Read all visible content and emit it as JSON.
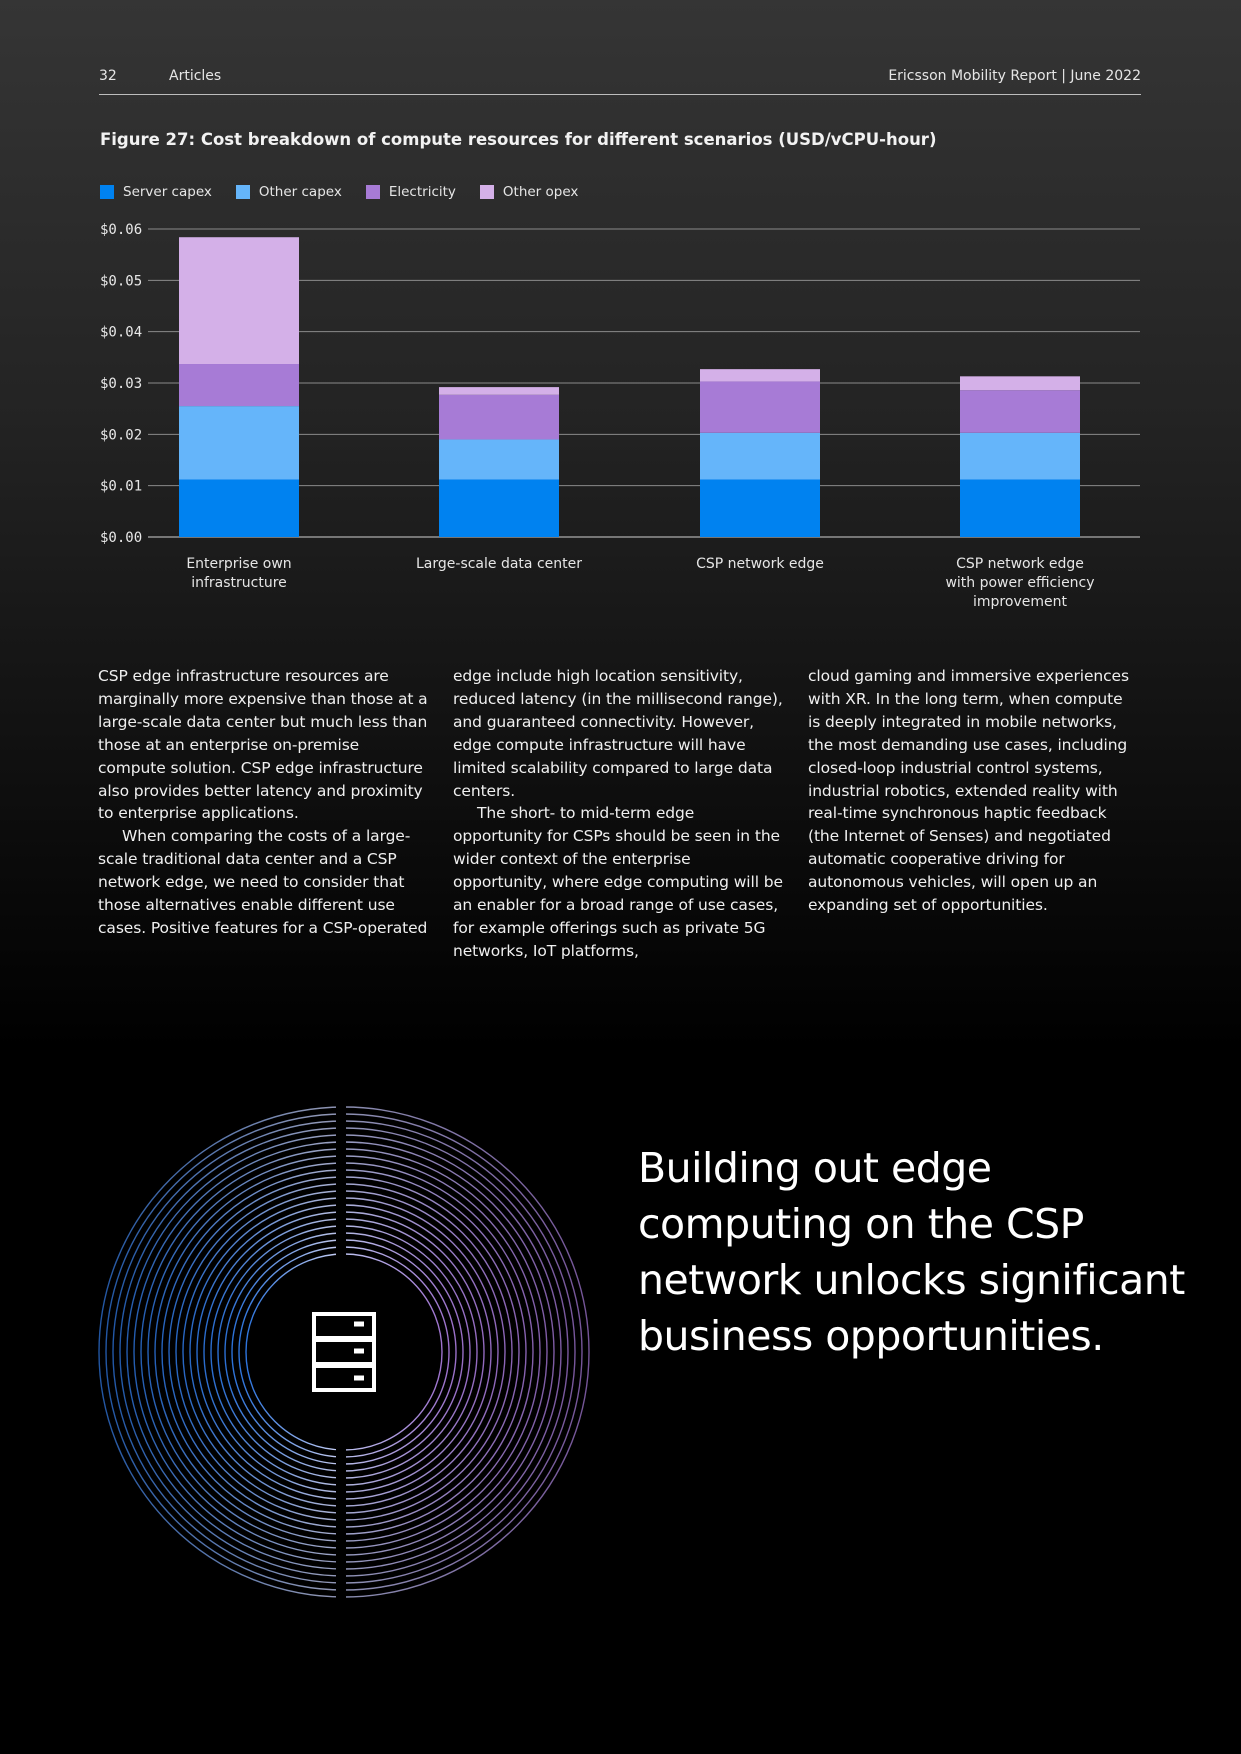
{
  "header": {
    "page_number": "32",
    "section": "Articles",
    "report": "Ericsson Mobility Report  |  June 2022"
  },
  "figure": {
    "title": "Figure 27: Cost breakdown of compute resources for different scenarios (USD/vCPU-hour)"
  },
  "colors": {
    "server_capex": "#0082f0",
    "other_capex": "#65b5fa",
    "electricity": "#a77bd6",
    "other_opex": "#d4b0e8"
  },
  "chart_data": {
    "type": "bar",
    "stacked": true,
    "title": "Figure 27: Cost breakdown of compute resources for different scenarios (USD/vCPU-hour)",
    "categories": [
      [
        "Enterprise own",
        "infrastructure"
      ],
      [
        "Large-scale data center"
      ],
      [
        "CSP network edge"
      ],
      [
        "CSP network edge",
        "with power efficiency",
        "improvement"
      ]
    ],
    "series": [
      {
        "name": "Server capex",
        "color": "#0082f0",
        "values": [
          0.0112,
          0.0112,
          0.0112,
          0.0112
        ]
      },
      {
        "name": "Other capex",
        "color": "#65b5fa",
        "values": [
          0.0143,
          0.0078,
          0.0091,
          0.0091
        ]
      },
      {
        "name": "Electricity",
        "color": "#a77bd6",
        "values": [
          0.0082,
          0.0087,
          0.01,
          0.0083
        ]
      },
      {
        "name": "Other opex",
        "color": "#d4b0e8",
        "values": [
          0.0247,
          0.0015,
          0.0024,
          0.0027
        ]
      }
    ],
    "ylim": [
      0,
      0.06
    ],
    "yticks": [
      "$0.00",
      "$0.01",
      "$0.02",
      "$0.03",
      "$0.04",
      "$0.05",
      "$0.06"
    ],
    "grid": true,
    "legend_position": "top-left"
  },
  "body": {
    "col1": [
      "CSP edge infrastructure resources are marginally more expensive than those at a large-scale data center but much less than those at an enterprise on-premise compute solution. CSP edge infrastructure also provides better latency and proximity to enterprise applications.",
      "When comparing the costs of a large-scale traditional data center and a CSP network edge, we need to consider that those alternatives enable different use cases. Positive features for a CSP-operated"
    ],
    "col2": [
      "edge include high location sensitivity, reduced latency (in the millisecond range), and guaranteed connectivity. However, edge compute infrastructure will have limited scalability compared to large data centers.",
      "The short- to mid-term edge opportunity for CSPs should be seen in the wider context of the enterprise opportunity, where edge computing will be an enabler for a broad range of use cases, for example offerings such as private 5G networks, IoT platforms,"
    ],
    "col3": [
      "cloud gaming and immersive experiences with XR. In the long term, when compute is deeply integrated in mobile networks, the most demanding use cases, including closed-loop industrial control systems, industrial robotics, extended reality with real-time synchronous haptic feedback (the Internet of Senses) and negotiated automatic cooperative driving for autonomous vehicles, will open up an expanding set of opportunities."
    ]
  },
  "quote": {
    "lines": [
      "Building out edge",
      "computing on the CSP",
      "network unlocks significant",
      "business opportunities."
    ]
  },
  "icons": {
    "decor": "server-icon"
  }
}
